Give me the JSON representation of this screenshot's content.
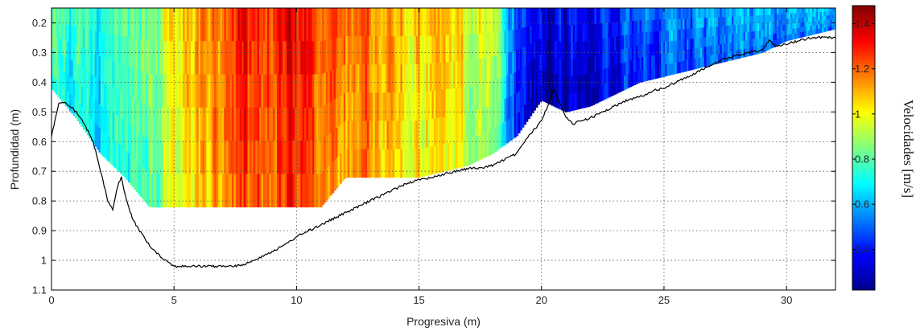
{
  "chart_data": {
    "type": "heatmap",
    "title": "",
    "xlabel": "Progresiva (m)",
    "ylabel": "Profundidad (m)",
    "xlim": [
      0,
      32
    ],
    "ylim": [
      1.1,
      0.15
    ],
    "y_inverted": true,
    "grid": true,
    "grid_style": "dotted",
    "colormap": "jet",
    "x_ticks": [
      0,
      5,
      10,
      15,
      20,
      25,
      30
    ],
    "x_tick_labels": [
      "0",
      "5",
      "10",
      "15",
      "20",
      "25",
      "30"
    ],
    "y_ticks": [
      0.2,
      0.3,
      0.4,
      0.5,
      0.6,
      0.7,
      0.8,
      0.9,
      1.0,
      1.1
    ],
    "y_tick_labels": [
      "0.2",
      "0.3",
      "0.4",
      "0.5",
      "0.6",
      "0.7",
      "0.8",
      "0.9",
      "1",
      "1.1"
    ],
    "colorbar": {
      "label": "Velocidades [m/s]",
      "range": [
        0.22,
        1.48
      ],
      "ticks": [
        0.4,
        0.6,
        0.8,
        1.0,
        1.2,
        1.4
      ],
      "tick_labels": [
        "0.4",
        "0.6",
        "0.8",
        "1",
        "1.2",
        "1.4"
      ]
    },
    "bed_profile": {
      "x": [
        0,
        0.3,
        0.6,
        1.0,
        1.4,
        1.7,
        2.0,
        2.3,
        2.5,
        2.7,
        2.85,
        3.0,
        3.3,
        3.6,
        4.0,
        4.5,
        5.0,
        5.5,
        6.0,
        6.5,
        7.0,
        7.5,
        8.0,
        8.5,
        9.0,
        9.5,
        10.0,
        10.5,
        11.0,
        11.5,
        12.0,
        12.5,
        13.0,
        13.5,
        14.0,
        14.5,
        15.0,
        15.5,
        16.0,
        16.5,
        17.0,
        17.5,
        18.0,
        18.5,
        19.0,
        19.3,
        19.6,
        20.0,
        20.3,
        20.5,
        20.7,
        21.0,
        21.3,
        21.6,
        22.0,
        22.5,
        23.0,
        23.5,
        24.0,
        24.5,
        25.0,
        25.5,
        26.0,
        26.5,
        27.0,
        27.5,
        28.0,
        28.5,
        29.0,
        29.3,
        29.6,
        30.0,
        30.5,
        31.0,
        31.5,
        32.0
      ],
      "y": [
        0.58,
        0.47,
        0.47,
        0.5,
        0.55,
        0.6,
        0.7,
        0.8,
        0.83,
        0.75,
        0.72,
        0.78,
        0.86,
        0.9,
        0.95,
        0.99,
        1.02,
        1.02,
        1.02,
        1.02,
        1.02,
        1.02,
        1.01,
        0.99,
        0.97,
        0.95,
        0.92,
        0.9,
        0.88,
        0.86,
        0.84,
        0.82,
        0.8,
        0.78,
        0.76,
        0.74,
        0.73,
        0.72,
        0.71,
        0.7,
        0.69,
        0.69,
        0.68,
        0.66,
        0.64,
        0.6,
        0.57,
        0.53,
        0.47,
        0.42,
        0.46,
        0.52,
        0.54,
        0.53,
        0.52,
        0.5,
        0.48,
        0.46,
        0.45,
        0.43,
        0.42,
        0.4,
        0.38,
        0.36,
        0.34,
        0.32,
        0.31,
        0.3,
        0.29,
        0.26,
        0.28,
        0.27,
        0.26,
        0.25,
        0.25,
        0.25
      ]
    },
    "velocity_field": {
      "x": [
        0,
        1,
        2,
        3,
        4,
        5,
        6,
        7,
        8,
        9,
        10,
        11,
        12,
        13,
        14,
        15,
        16,
        17,
        18,
        19,
        20,
        21,
        22,
        23,
        24,
        25,
        26,
        27,
        28,
        29,
        30,
        31,
        32
      ],
      "bottom_depth": [
        0.42,
        0.52,
        0.64,
        0.72,
        0.82,
        0.82,
        0.82,
        0.82,
        0.82,
        0.82,
        0.82,
        0.82,
        0.72,
        0.72,
        0.72,
        0.72,
        0.7,
        0.68,
        0.64,
        0.58,
        0.46,
        0.5,
        0.48,
        0.44,
        0.4,
        0.38,
        0.36,
        0.34,
        0.32,
        0.3,
        0.26,
        0.24,
        0.22
      ],
      "mean_velocity": [
        0.78,
        0.76,
        0.74,
        0.8,
        0.9,
        1.05,
        1.15,
        1.2,
        1.25,
        1.33,
        1.3,
        1.22,
        1.18,
        1.15,
        1.1,
        1.07,
        1.05,
        1.0,
        0.98,
        0.45,
        0.38,
        0.35,
        0.38,
        0.42,
        0.45,
        0.5,
        0.52,
        0.55,
        0.55,
        0.57,
        0.58,
        0.55,
        0.55
      ]
    }
  }
}
